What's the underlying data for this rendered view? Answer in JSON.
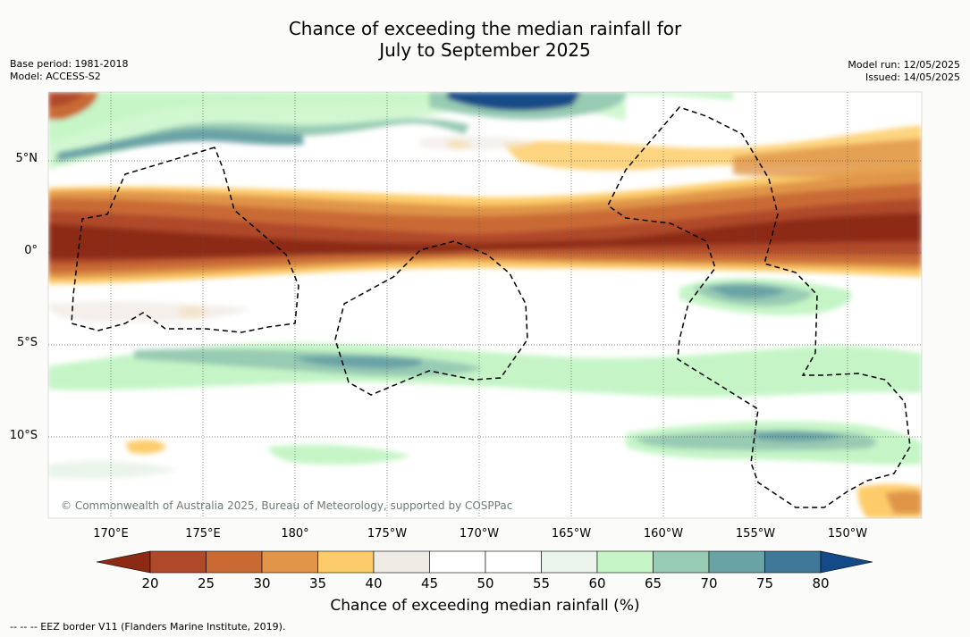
{
  "title_line1": "Chance of exceeding the median rainfall for",
  "title_line2": "July to September 2025",
  "meta_left": [
    "Base period: 1981-2018",
    "Model: ACCESS-S2"
  ],
  "meta_right": [
    "Model run: 12/05/2025",
    "Issued: 14/05/2025"
  ],
  "lat_labels": [
    "5°N",
    "0°",
    "5°S",
    "10°S"
  ],
  "lon_labels": [
    "170°E",
    "175°E",
    "180°",
    "175°W",
    "170°W",
    "165°W",
    "160°W",
    "155°W",
    "150°W"
  ],
  "credit": "© Commonwealth of Australia 2025, Bureau of Meteorology, supported by COSPPac",
  "colorbar": {
    "ticks": [
      "20",
      "25",
      "30",
      "35",
      "40",
      "45",
      "50",
      "55",
      "60",
      "65",
      "70",
      "75",
      "80"
    ],
    "colors": [
      "#8c2a14",
      "#b0482a",
      "#c96a35",
      "#e09548",
      "#fdcc6a",
      "#f1ebe6",
      "#ffffff",
      "#ffffff",
      "#eaf4ea",
      "#c5f5c6",
      "#98cbb3",
      "#6aa3a6",
      "#3f7898",
      "#124b87"
    ],
    "title": "Chance of exceeding median rainfall (%)"
  },
  "footer": "--  --  -- EEZ border V11 (Flanders Marine Institute, 2019)."
}
